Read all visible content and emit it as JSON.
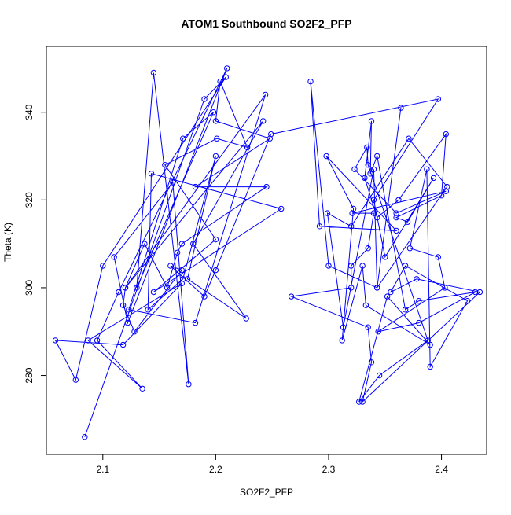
{
  "chart_data": {
    "type": "line",
    "title": "ATOM1 Southbound SO2F2_PFP",
    "xlabel": "SO2F2_PFP",
    "ylabel": "Theta (K)",
    "xlim": [
      2.05,
      2.44
    ],
    "ylim": [
      262,
      355
    ],
    "x_ticks": [
      2.1,
      2.2,
      2.3,
      2.4
    ],
    "x_tick_labels": [
      "2.1",
      "2.2",
      "2.3",
      "2.4"
    ],
    "y_ticks": [
      280,
      300,
      320,
      340
    ],
    "y_tick_labels": [
      "280",
      "300",
      "320",
      "340"
    ],
    "grid": false,
    "legend": "none",
    "series": [
      {
        "color": "#0000ff",
        "marker": "open-circle",
        "x": [
          2.084,
          2.19,
          2.209,
          2.1,
          2.076,
          2.058,
          2.118,
          2.17,
          2.087,
          2.135,
          2.095,
          2.114,
          2.21,
          2.122,
          2.11,
          2.162,
          2.176,
          2.145,
          2.13,
          2.198,
          2.171,
          2.123,
          2.182,
          2.244,
          2.12,
          2.242,
          2.18,
          2.227,
          2.175,
          2.2,
          2.171,
          2.14,
          2.143,
          2.258,
          2.145,
          2.2,
          2.155,
          2.201,
          2.228,
          2.204,
          2.2,
          2.248,
          2.182,
          2.245,
          2.17,
          2.166,
          2.157,
          2.137,
          2.12,
          2.118,
          2.128,
          2.17,
          2.16,
          2.19,
          2.2,
          2.249,
          2.397,
          2.34,
          2.35,
          2.393,
          2.37,
          2.36,
          2.4,
          2.404,
          2.362,
          2.343,
          2.332,
          2.338,
          2.337,
          2.343,
          2.368,
          2.38,
          2.43,
          2.38,
          2.344,
          2.403,
          2.397,
          2.372,
          2.387,
          2.39,
          2.423,
          2.368,
          2.355,
          2.378,
          2.434,
          2.33,
          2.338,
          2.335,
          2.267,
          2.32,
          2.32,
          2.335,
          2.34,
          2.321,
          2.404,
          2.36,
          2.323,
          2.334,
          2.335,
          2.388,
          2.345,
          2.327,
          2.352,
          2.39,
          2.333,
          2.33,
          2.312,
          2.322,
          2.298,
          2.36,
          2.292,
          2.284,
          2.3,
          2.343,
          2.405,
          2.371,
          2.32,
          2.299,
          2.313,
          2.34,
          2.343,
          2.364
        ],
        "y": [
          266,
          343,
          348,
          305,
          279,
          288,
          287,
          301,
          288,
          277,
          288,
          299,
          350,
          292,
          307,
          324,
          278,
          349,
          300,
          340,
          334,
          295,
          292,
          344,
          300,
          338,
          310,
          293,
          302,
          330,
          302,
          295,
          326,
          318,
          299,
          311,
          328,
          334,
          332,
          347,
          338,
          334,
          323,
          323,
          310,
          308,
          300,
          310,
          300,
          296,
          290,
          304,
          305,
          298,
          304,
          335,
          343,
          320,
          307,
          325,
          315,
          316,
          321,
          335,
          320,
          316,
          325,
          338,
          326,
          330,
          295,
          297,
          299,
          292,
          290,
          300,
          307,
          309,
          327,
          282,
          297,
          305,
          299,
          302,
          299,
          274,
          283,
          291,
          298,
          300,
          305,
          309,
          317,
          317,
          322,
          317,
          327,
          332,
          328,
          288,
          280,
          274,
          298,
          287,
          296,
          305,
          288,
          318,
          330,
          313,
          314,
          347,
          305,
          300,
          323,
          334,
          314,
          317,
          291,
          327,
          300,
          341
        ]
      }
    ]
  }
}
